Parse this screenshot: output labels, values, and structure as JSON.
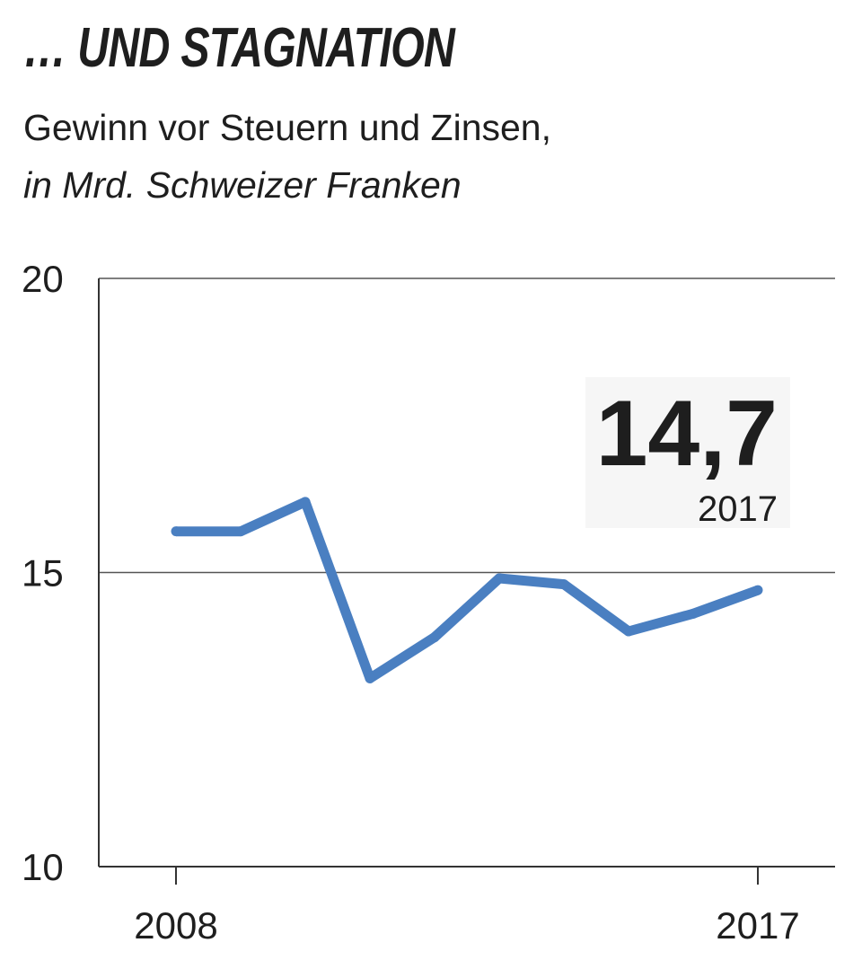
{
  "header": {
    "title": "… UND STAGNATION",
    "subtitle": "Gewinn vor Steuern und Zinsen,",
    "unit": "in Mrd. Schweizer Franken"
  },
  "callout": {
    "value": "14,7",
    "year": "2017"
  },
  "colors": {
    "series": "#4a7fc1",
    "text": "#1e1e1e",
    "axis": "#333333",
    "gridline": "#555555",
    "callout_bg": "#f6f6f6"
  },
  "chart_data": {
    "type": "line",
    "title": "… UND STAGNATION",
    "subtitle": "Gewinn vor Steuern und Zinsen, in Mrd. Schweizer Franken",
    "x": [
      2008,
      2009,
      2010,
      2011,
      2012,
      2013,
      2014,
      2015,
      2016,
      2017
    ],
    "x_tick_labels": [
      "2008",
      "2017"
    ],
    "series": [
      {
        "values": [
          15.7,
          15.7,
          16.2,
          13.2,
          13.9,
          14.9,
          14.8,
          14.0,
          14.3,
          14.7
        ]
      }
    ],
    "ylim": [
      10,
      20
    ],
    "y_ticks": [
      10,
      15,
      20
    ],
    "y_tick_labels": [
      "10",
      "15",
      "20"
    ],
    "gridlines": [
      15,
      20
    ],
    "legend": "none",
    "annotation": {
      "x": 2017,
      "text": "14,7",
      "label": "2017"
    }
  }
}
